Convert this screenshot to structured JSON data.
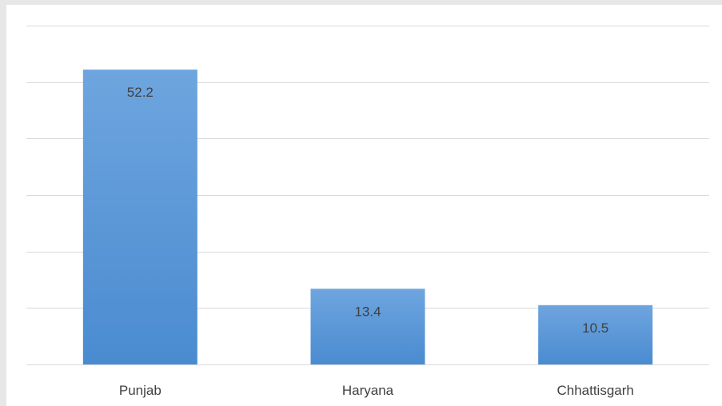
{
  "chart_data": {
    "type": "bar",
    "categories": [
      "Punjab",
      "Haryana",
      "Chhattisgarh"
    ],
    "values": [
      52.2,
      13.4,
      10.5
    ],
    "data_labels": [
      "52.2",
      "13.4",
      "10.5"
    ],
    "title": "",
    "xlabel": "",
    "ylabel": "",
    "ylim": [
      0,
      60
    ],
    "grid": true,
    "legend": "none",
    "colors": {
      "bar_top": "#6ea5df",
      "bar_bottom": "#4a8bd0",
      "grid": "#d9d9d9",
      "text": "#404040",
      "background": "#e6e7e6",
      "plot_background": "#ffffff"
    }
  }
}
